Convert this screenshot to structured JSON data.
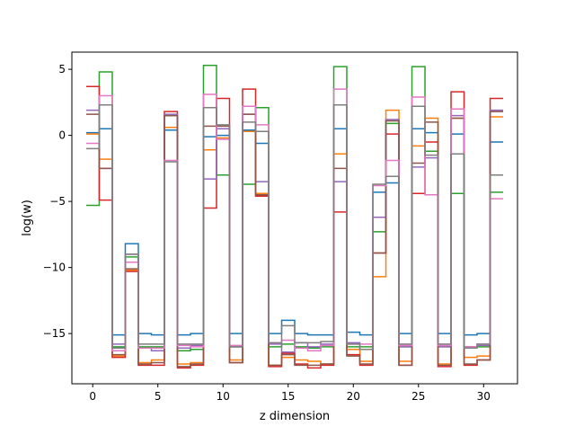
{
  "chart_data": {
    "type": "line",
    "drawstyle": "steps-mid",
    "xlabel": "z dimension",
    "ylabel": "log(w)",
    "xlim": [
      -1.6,
      32.6
    ],
    "ylim": [
      -18.8,
      6.3
    ],
    "xticks": [
      0,
      5,
      10,
      15,
      20,
      25,
      30
    ],
    "yticks": [
      -15,
      -10,
      -5,
      0,
      5
    ],
    "grid": false,
    "legend": "none",
    "x": [
      0,
      1,
      2,
      3,
      4,
      5,
      6,
      7,
      8,
      9,
      10,
      11,
      12,
      13,
      14,
      15,
      16,
      17,
      18,
      19,
      20,
      21,
      22,
      23,
      24,
      25,
      26,
      27,
      28,
      29,
      30,
      31
    ],
    "series": [
      {
        "color": "#1f77b4",
        "values": [
          0.2,
          0.5,
          -15.1,
          -8.2,
          -15.0,
          -15.1,
          0.4,
          -15.1,
          -15.0,
          -0.1,
          0.0,
          -15.0,
          0.4,
          -0.6,
          -15.0,
          -14.0,
          -15.0,
          -15.1,
          -15.1,
          0.5,
          -14.9,
          -15.1,
          -4.3,
          -3.6,
          -15.0,
          0.5,
          0.2,
          -15.0,
          0.1,
          -15.1,
          -15.0,
          -0.5
        ]
      },
      {
        "color": "#ff7f0e",
        "values": [
          0.1,
          -1.8,
          -16.7,
          -10.2,
          -17.2,
          -17.0,
          0.6,
          -17.3,
          -17.2,
          -1.1,
          -0.2,
          -17.0,
          0.3,
          -4.4,
          -17.4,
          -16.8,
          -17.0,
          -17.1,
          -17.3,
          -1.4,
          -16.2,
          -17.1,
          -10.7,
          1.9,
          -17.1,
          -0.8,
          1.3,
          -17.3,
          1.3,
          -16.8,
          -16.7,
          1.4
        ]
      },
      {
        "color": "#2ca02c",
        "values": [
          -5.3,
          4.8,
          -16.0,
          -9.2,
          -16.0,
          -16.0,
          1.5,
          -16.3,
          -16.2,
          5.3,
          -3.0,
          -16.0,
          -3.7,
          2.1,
          -16.0,
          -15.8,
          -16.0,
          -16.1,
          -16.0,
          5.2,
          -16.0,
          -16.0,
          -7.3,
          0.9,
          -16.0,
          5.2,
          -1.2,
          -16.0,
          -4.4,
          -16.0,
          -16.0,
          -4.3
        ]
      },
      {
        "color": "#d62728",
        "values": [
          3.7,
          -4.9,
          -16.8,
          -10.3,
          -17.4,
          -17.4,
          1.8,
          -17.6,
          -17.4,
          -5.5,
          2.8,
          -17.2,
          3.5,
          -4.6,
          -17.5,
          -16.5,
          -17.3,
          -17.6,
          -17.4,
          -5.8,
          -16.6,
          -17.4,
          -8.9,
          0.1,
          -17.4,
          -4.4,
          -0.5,
          -17.5,
          3.3,
          -17.4,
          -17.0,
          2.8
        ]
      },
      {
        "color": "#9467bd",
        "values": [
          1.9,
          -2.5,
          -15.8,
          -9.0,
          -16.1,
          -16.3,
          1.6,
          -16.1,
          -15.9,
          -3.3,
          0.5,
          -16.0,
          1.6,
          -3.5,
          -15.8,
          -16.4,
          -15.7,
          -16.0,
          -15.8,
          -3.5,
          -15.7,
          -16.2,
          -6.2,
          1.2,
          -16.0,
          -2.4,
          -1.7,
          -16.0,
          1.5,
          -16.0,
          -15.9,
          1.9
        ]
      },
      {
        "color": "#8c564b",
        "values": [
          1.6,
          -2.5,
          -16.6,
          -10.1,
          -17.3,
          -17.2,
          1.5,
          -17.5,
          -17.3,
          0.7,
          0.7,
          -17.2,
          1.6,
          -4.5,
          -17.4,
          -16.6,
          -17.4,
          -17.4,
          -17.3,
          -2.5,
          -16.7,
          -17.3,
          -8.9,
          1.1,
          -17.4,
          -2.1,
          1.0,
          -17.4,
          1.3,
          -17.3,
          -17.0,
          1.8
        ]
      },
      {
        "color": "#e377c2",
        "values": [
          -0.6,
          3.0,
          -16.3,
          -9.6,
          -16.1,
          -16.1,
          -1.9,
          -15.9,
          -16.0,
          3.1,
          -0.3,
          -15.9,
          2.2,
          0.8,
          -15.7,
          -15.5,
          -16.1,
          -16.3,
          -15.9,
          3.5,
          -15.8,
          -15.8,
          -3.8,
          -1.9,
          -15.9,
          2.9,
          -4.5,
          -15.9,
          2.0,
          -16.0,
          -15.8,
          -4.8
        ]
      },
      {
        "color": "#7f7f7f",
        "values": [
          -1.0,
          2.3,
          -16.1,
          -9.0,
          -15.8,
          -15.8,
          -2.0,
          -15.8,
          -15.8,
          2.1,
          0.8,
          -16.0,
          1.0,
          0.3,
          -15.7,
          -14.4,
          -15.7,
          -15.7,
          -15.6,
          2.3,
          -15.8,
          -16.2,
          -3.7,
          -3.1,
          -15.8,
          2.2,
          -1.5,
          -15.8,
          -1.4,
          -16.1,
          -15.8,
          -3.0
        ]
      }
    ]
  }
}
